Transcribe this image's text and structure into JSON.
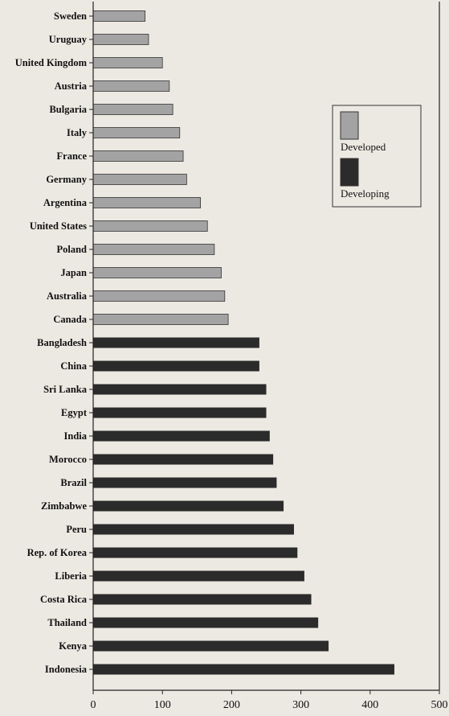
{
  "chart_data": {
    "type": "bar",
    "orientation": "horizontal",
    "title": "",
    "xlabel": "",
    "ylabel": "",
    "xlim": [
      0,
      500
    ],
    "x_ticks": [
      0,
      100,
      200,
      300,
      400,
      500
    ],
    "legend_position": "top-right",
    "grid": false,
    "colors": {
      "developed": "#a3a3a3",
      "developing": "#2b2b2b",
      "axis": "#222222",
      "background": "#ece9e2"
    },
    "series": [
      {
        "name": "Developed",
        "key": "developed"
      },
      {
        "name": "Developing",
        "key": "developing"
      }
    ],
    "categories": [
      "Sweden",
      "Uruguay",
      "United Kingdom",
      "Austria",
      "Bulgaria",
      "Italy",
      "France",
      "Germany",
      "Argentina",
      "United States",
      "Poland",
      "Japan",
      "Australia",
      "Canada",
      "Bangladesh",
      "China",
      "Sri Lanka",
      "Egypt",
      "India",
      "Morocco",
      "Brazil",
      "Zimbabwe",
      "Peru",
      "Rep. of Korea",
      "Liberia",
      "Costa Rica",
      "Thailand",
      "Kenya",
      "Indonesia"
    ],
    "groups": [
      "developed",
      "developed",
      "developed",
      "developed",
      "developed",
      "developed",
      "developed",
      "developed",
      "developed",
      "developed",
      "developed",
      "developed",
      "developed",
      "developed",
      "developing",
      "developing",
      "developing",
      "developing",
      "developing",
      "developing",
      "developing",
      "developing",
      "developing",
      "developing",
      "developing",
      "developing",
      "developing",
      "developing",
      "developing"
    ],
    "values": [
      75,
      80,
      100,
      110,
      115,
      125,
      130,
      135,
      155,
      165,
      175,
      185,
      190,
      195,
      240,
      240,
      250,
      250,
      255,
      260,
      265,
      275,
      290,
      295,
      305,
      315,
      325,
      340,
      435
    ]
  }
}
